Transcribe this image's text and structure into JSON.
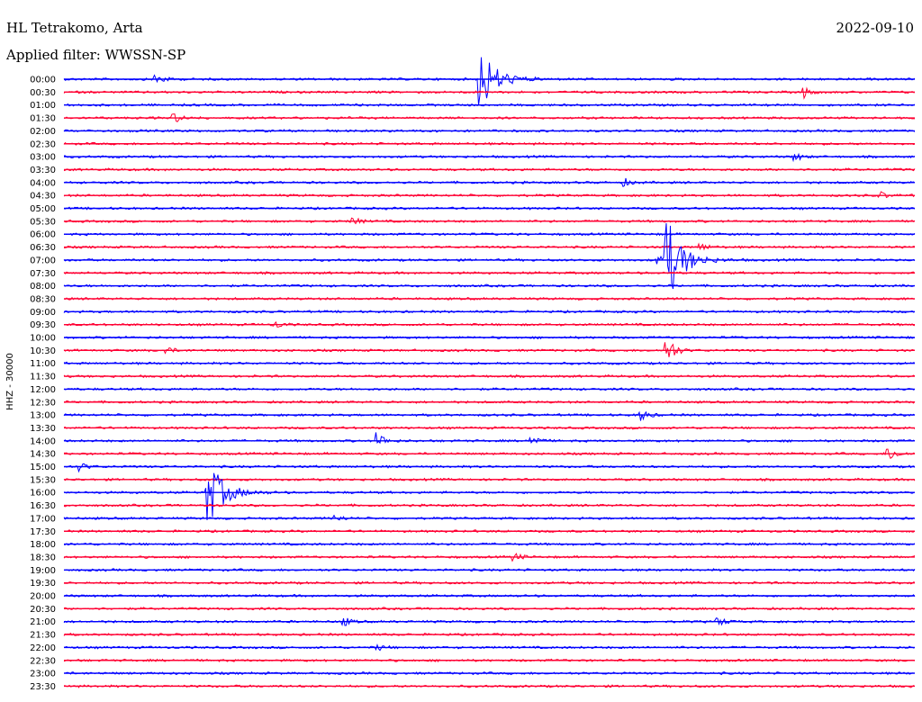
{
  "header": {
    "station": "HL Tetrakomo, Arta",
    "filter": "Applied filter: WWSSN-SP",
    "date": "2022-09-10"
  },
  "chart_data": {
    "type": "line",
    "title": "HL Tetrakomo, Arta",
    "subtitle": "Applied filter: WWSSN-SP",
    "ylabel": "HHZ - 30000",
    "row_labels": [
      "00:00",
      "00:30",
      "01:00",
      "01:30",
      "02:00",
      "02:30",
      "03:00",
      "03:30",
      "04:00",
      "04:30",
      "05:00",
      "05:30",
      "06:00",
      "06:30",
      "07:00",
      "07:30",
      "08:00",
      "08:30",
      "09:00",
      "09:30",
      "10:00",
      "10:30",
      "11:00",
      "11:30",
      "12:00",
      "12:30",
      "13:00",
      "13:30",
      "14:00",
      "14:30",
      "15:00",
      "15:30",
      "16:00",
      "16:30",
      "17:00",
      "17:30",
      "18:00",
      "18:30",
      "19:00",
      "19:30",
      "20:00",
      "20:30",
      "21:00",
      "21:30",
      "22:00",
      "22:30",
      "23:00",
      "23:30"
    ],
    "colors": [
      "#0000ff",
      "#ff0033"
    ],
    "events": [
      {
        "row": 0,
        "t": 0.11,
        "amp": 0.9
      },
      {
        "row": 0,
        "t": 0.49,
        "amp": 5.0
      },
      {
        "row": 1,
        "t": 0.87,
        "amp": 0.8
      },
      {
        "row": 3,
        "t": 0.13,
        "amp": 0.7
      },
      {
        "row": 6,
        "t": 0.86,
        "amp": 0.6
      },
      {
        "row": 8,
        "t": 0.66,
        "amp": 0.5
      },
      {
        "row": 9,
        "t": 0.96,
        "amp": 0.5
      },
      {
        "row": 11,
        "t": 0.34,
        "amp": 0.6
      },
      {
        "row": 13,
        "t": 0.75,
        "amp": 0.5
      },
      {
        "row": 14,
        "t": 0.7,
        "amp": 1.0
      },
      {
        "row": 14,
        "t": 0.71,
        "amp": 6.0
      },
      {
        "row": 19,
        "t": 0.25,
        "amp": 0.5
      },
      {
        "row": 21,
        "t": 0.71,
        "amp": 2.5
      },
      {
        "row": 21,
        "t": 0.12,
        "amp": 0.6
      },
      {
        "row": 26,
        "t": 0.68,
        "amp": 0.8
      },
      {
        "row": 28,
        "t": 0.37,
        "amp": 1.2
      },
      {
        "row": 28,
        "t": 0.55,
        "amp": 0.9
      },
      {
        "row": 29,
        "t": 0.97,
        "amp": 1.2
      },
      {
        "row": 30,
        "t": 0.02,
        "amp": 0.6
      },
      {
        "row": 32,
        "t": 0.17,
        "amp": 5.0
      },
      {
        "row": 34,
        "t": 0.32,
        "amp": 0.5
      },
      {
        "row": 37,
        "t": 0.53,
        "amp": 0.6
      },
      {
        "row": 42,
        "t": 0.33,
        "amp": 0.6
      },
      {
        "row": 42,
        "t": 0.77,
        "amp": 0.7
      },
      {
        "row": 44,
        "t": 0.37,
        "amp": 0.4
      }
    ]
  }
}
